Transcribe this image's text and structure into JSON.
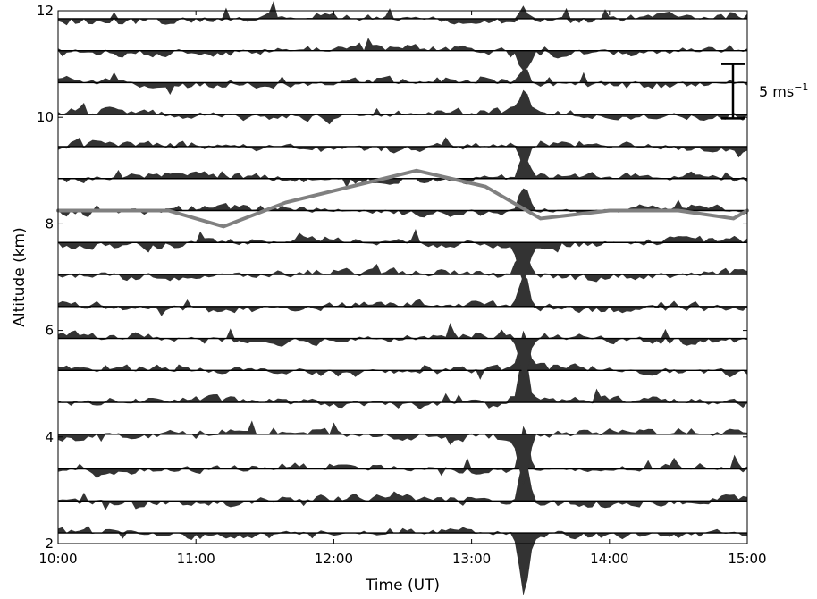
{
  "chart_data": {
    "type": "area",
    "xlabel": "Time (UT)",
    "ylabel": "Altitude (km)",
    "xlim": [
      10,
      15
    ],
    "ylim": [
      2,
      12
    ],
    "x_ticks": [
      {
        "value": 10,
        "label": "10:00"
      },
      {
        "value": 11,
        "label": "11:00"
      },
      {
        "value": 12,
        "label": "12:00"
      },
      {
        "value": 13,
        "label": "13:00"
      },
      {
        "value": 14,
        "label": "14:00"
      },
      {
        "value": 15,
        "label": "15:00"
      }
    ],
    "y_ticks": [
      {
        "value": 2,
        "label": "2"
      },
      {
        "value": 4,
        "label": "4"
      },
      {
        "value": 6,
        "label": "6"
      },
      {
        "value": 8,
        "label": "8"
      },
      {
        "value": 10,
        "label": "10"
      },
      {
        "value": 12,
        "label": "12"
      }
    ],
    "fill_color": "#333333",
    "overlay_color": "#808080",
    "scale_bar": {
      "label": "5 ms",
      "superscript": "−1",
      "altitude_bottom": 9.98,
      "altitude_top": 11.0
    },
    "baselines_km": [
      2.2,
      2.8,
      3.4,
      4.05,
      4.65,
      5.25,
      5.85,
      6.45,
      7.05,
      7.65,
      8.25,
      8.85,
      9.45,
      10.05,
      10.65,
      11.25,
      11.85
    ],
    "event": {
      "time": 13.38,
      "note": "strong perturbation at lower altitudes"
    },
    "overlay_line": {
      "x": [
        10.0,
        10.8,
        11.2,
        11.65,
        12.6,
        13.1,
        13.5,
        14.0,
        14.5,
        14.9,
        15.0
      ],
      "y": [
        8.25,
        8.25,
        7.95,
        8.4,
        9.0,
        8.7,
        8.1,
        8.25,
        8.25,
        8.1,
        8.25
      ]
    }
  }
}
